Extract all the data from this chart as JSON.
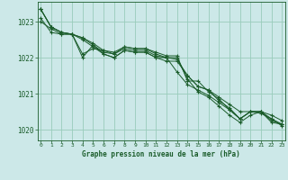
{
  "title": "Graphe pression niveau de la mer (hPa)",
  "background_color": "#cce8e8",
  "grid_color": "#99ccbb",
  "line_color": "#1a5c2a",
  "ylim": [
    1019.7,
    1023.55
  ],
  "yticks": [
    1020,
    1021,
    1022,
    1023
  ],
  "xlim": [
    -0.3,
    23.3
  ],
  "xticks": [
    0,
    1,
    2,
    3,
    4,
    5,
    6,
    7,
    8,
    9,
    10,
    11,
    12,
    13,
    14,
    15,
    16,
    17,
    18,
    19,
    20,
    21,
    22,
    23
  ],
  "series": [
    [
      1023.35,
      1022.85,
      1022.7,
      1022.65,
      1022.1,
      1022.25,
      1022.2,
      1022.15,
      1022.3,
      1022.25,
      1022.25,
      1022.15,
      1022.05,
      1022.05,
      1021.35,
      1021.35,
      1021.05,
      1020.85,
      1020.55,
      1020.3,
      1020.5,
      1020.5,
      1020.25,
      1020.15
    ],
    [
      1023.35,
      1022.85,
      1022.7,
      1022.65,
      1022.55,
      1022.35,
      1022.15,
      1022.1,
      1022.25,
      1022.2,
      1022.2,
      1022.05,
      1022.0,
      1021.6,
      1021.25,
      1021.1,
      1020.95,
      1020.75,
      1020.55,
      1020.3,
      1020.5,
      1020.45,
      1020.3,
      1020.15
    ],
    [
      1023.35,
      1022.85,
      1022.7,
      1022.65,
      1022.55,
      1022.4,
      1022.2,
      1022.1,
      1022.3,
      1022.25,
      1022.25,
      1022.1,
      1022.0,
      1021.95,
      1021.5,
      1021.2,
      1021.1,
      1020.9,
      1020.7,
      1020.5,
      1020.5,
      1020.5,
      1020.4,
      1020.25
    ],
    [
      1023.1,
      1022.7,
      1022.65,
      1022.65,
      1022.5,
      1022.3,
      1022.1,
      1022.0,
      1022.2,
      1022.15,
      1022.15,
      1022.0,
      1022.0,
      1022.0,
      1021.4,
      1021.05,
      1020.9,
      1020.65,
      1020.4,
      1020.2,
      1020.4,
      1020.5,
      1020.3,
      1020.1
    ],
    [
      1023.0,
      1022.8,
      1022.65,
      1022.65,
      1022.0,
      1022.35,
      1022.1,
      1022.0,
      1022.2,
      1022.15,
      1022.15,
      1022.0,
      1021.9,
      1021.9,
      1021.5,
      1021.2,
      1021.1,
      1020.8,
      1020.6,
      1020.3,
      1020.5,
      1020.5,
      1020.2,
      1020.15
    ]
  ]
}
